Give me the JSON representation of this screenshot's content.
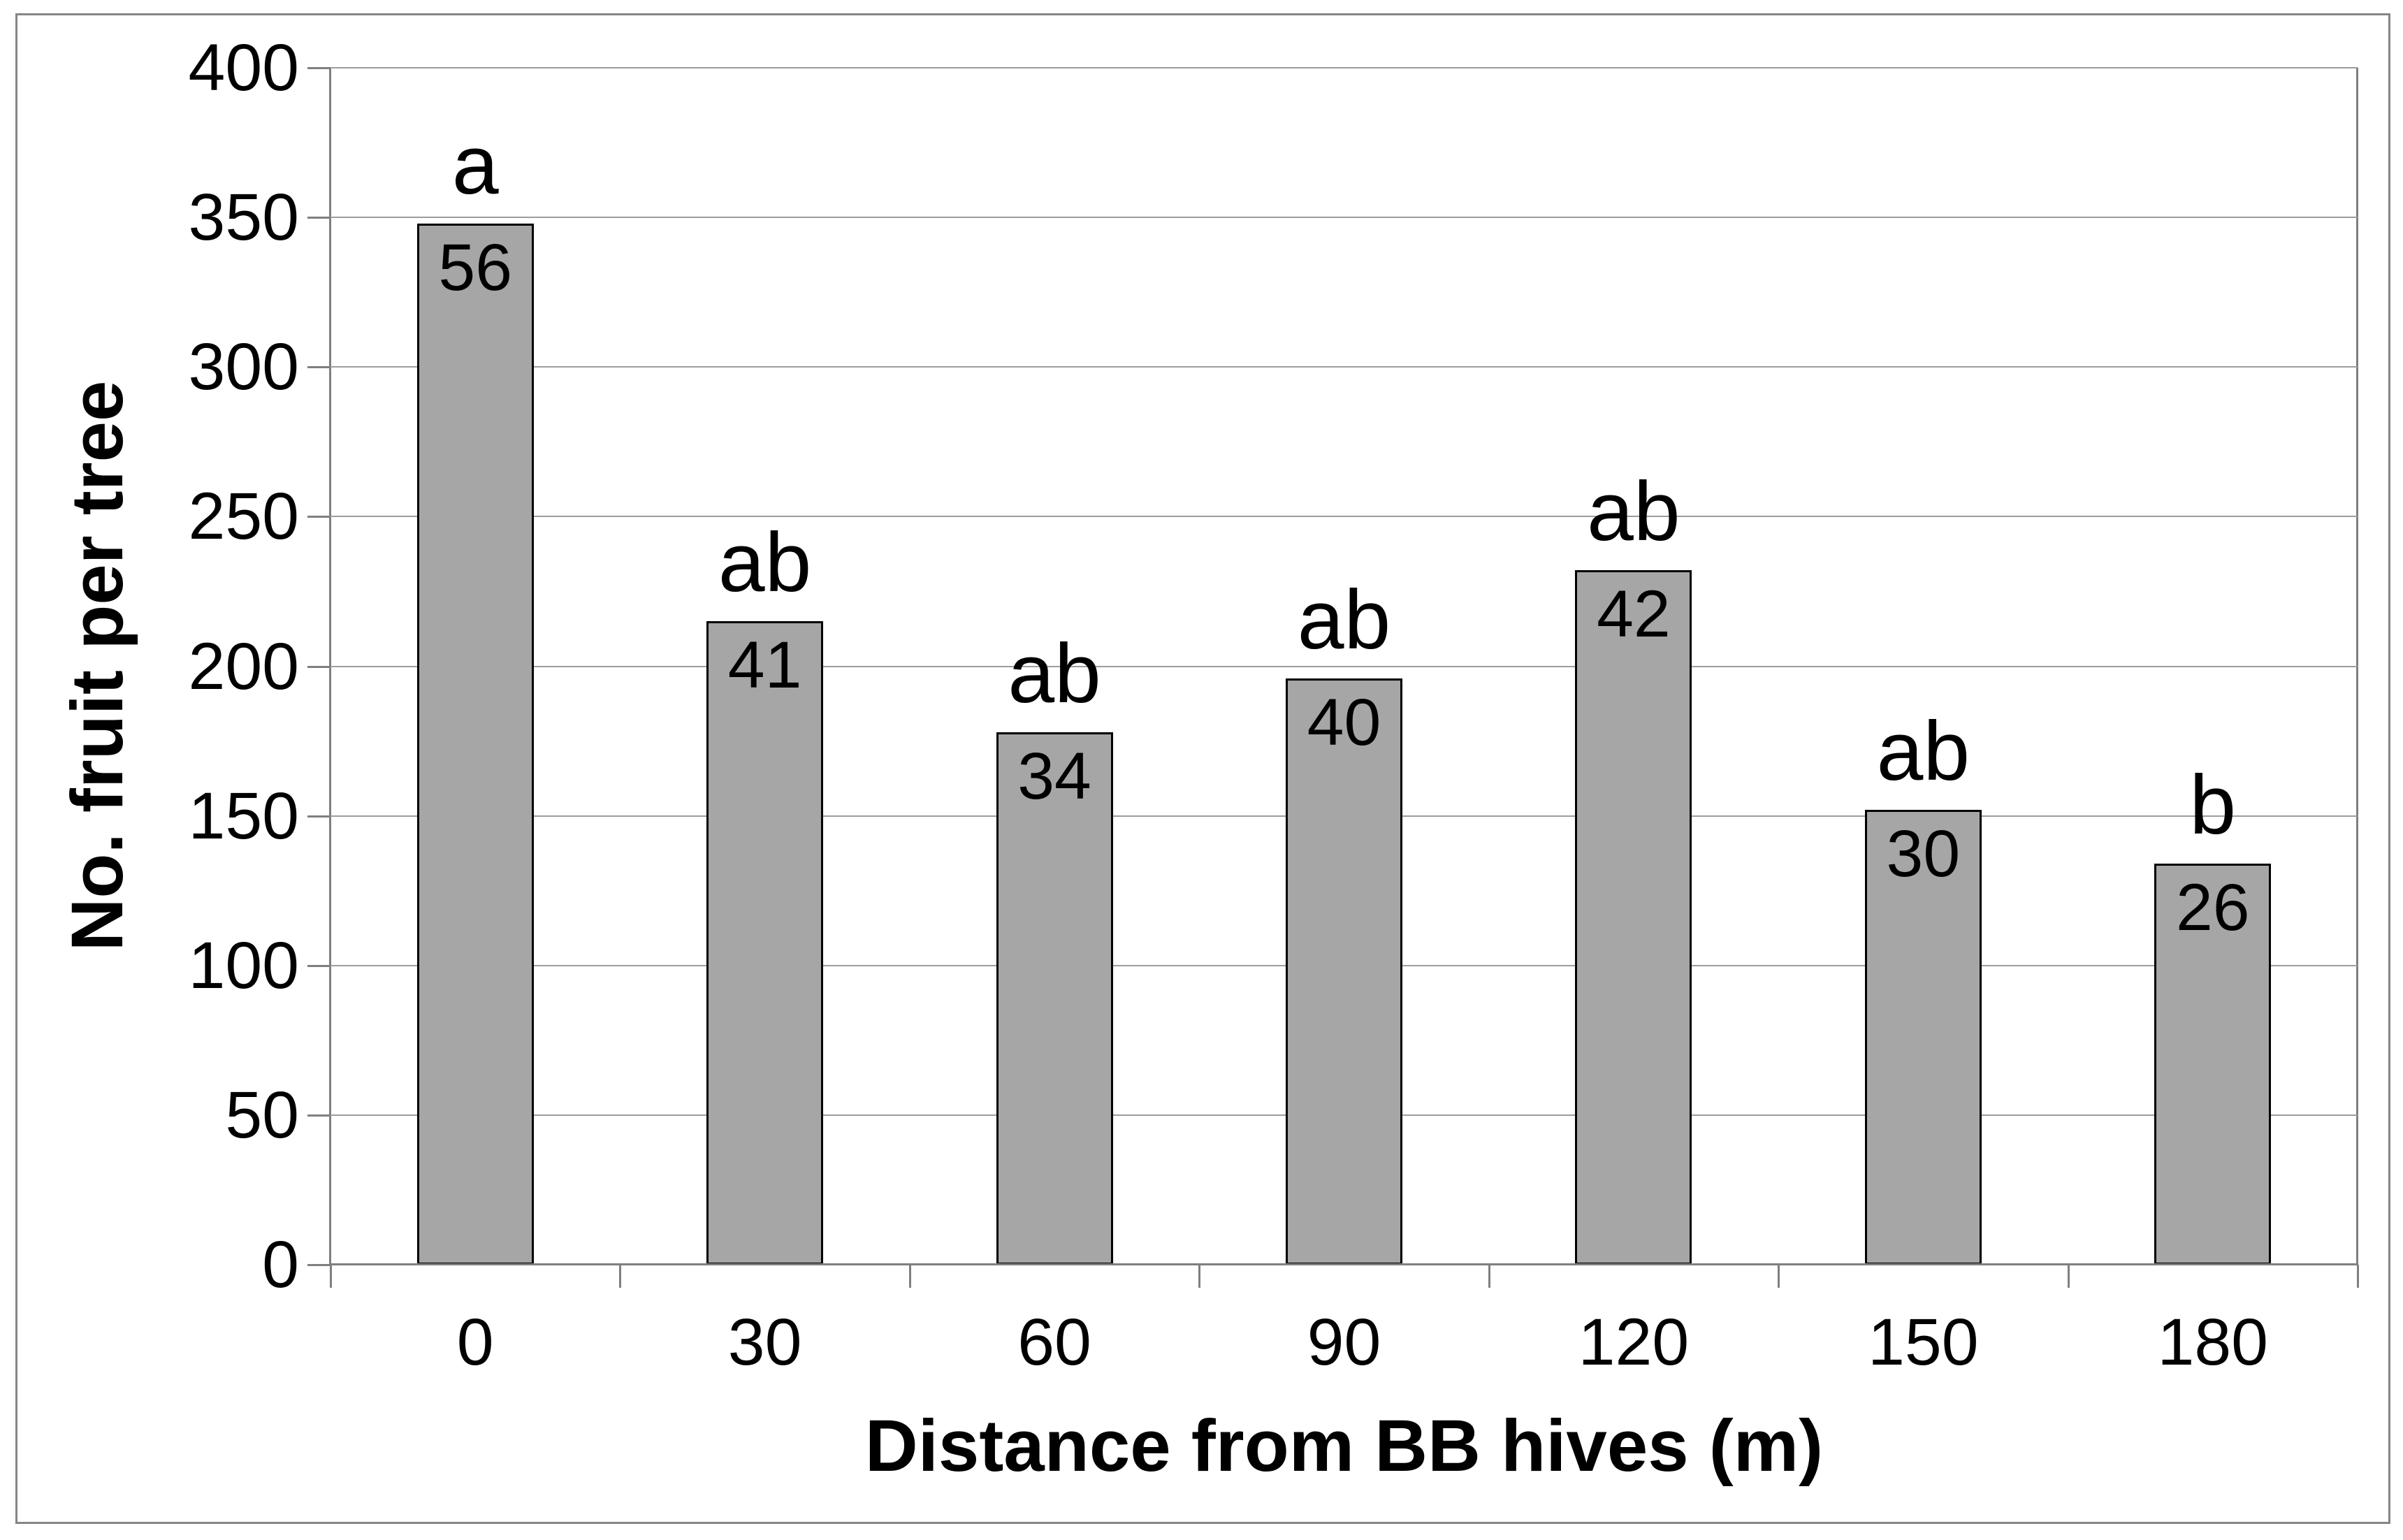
{
  "chart_data": {
    "type": "bar",
    "title": "",
    "xlabel": "Distance from BB hives (m)",
    "ylabel": "No. fruit per tree",
    "categories": [
      "0",
      "30",
      "60",
      "90",
      "120",
      "150",
      "180"
    ],
    "values": [
      348,
      215,
      178,
      196,
      232,
      152,
      134
    ],
    "bar_value_labels": [
      "56",
      "41",
      "34",
      "40",
      "42",
      "30",
      "26"
    ],
    "significance_letters": [
      "a",
      "ab",
      "ab",
      "ab",
      "ab",
      "ab",
      "b"
    ],
    "ylim": [
      0,
      400
    ],
    "y_ticks": [
      400,
      350,
      300,
      250,
      200,
      150,
      100,
      50,
      0
    ],
    "grid": "horizontal-gridlines-on",
    "legend": "none",
    "bar_fill_color": "#a6a6a6",
    "bar_border_color": "#000000",
    "gridline_color": "#9d9d9d",
    "axis_line_color": "#7f7f7f",
    "chart_border_color": "#858585",
    "background_color": "#ffffff"
  }
}
